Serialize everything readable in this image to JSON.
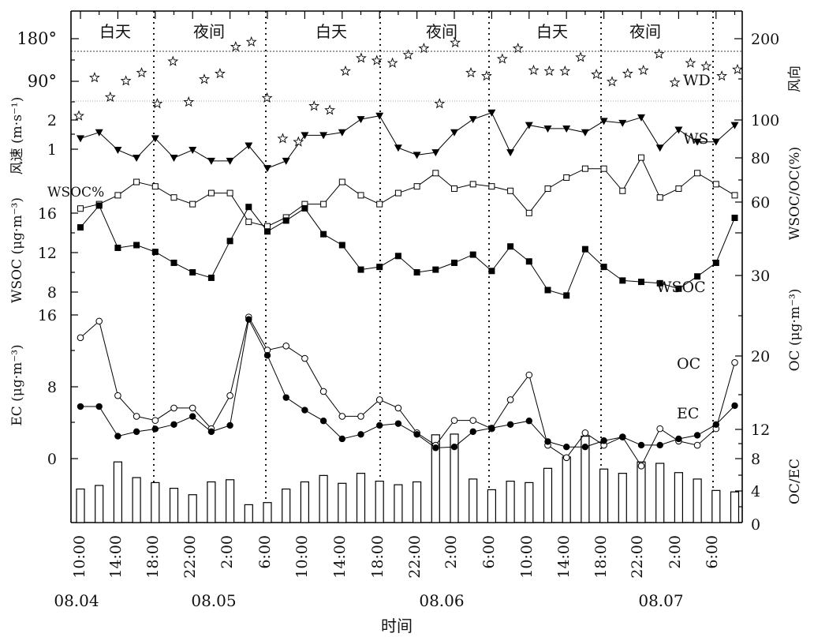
{
  "chart_data": {
    "type": "line",
    "xlabel": "时间",
    "x_tick_labels": [
      "10:00",
      "14:00",
      "18:00",
      "22:00",
      "2:00",
      "6:00",
      "10:00",
      "14:00",
      "18:00",
      "22:00",
      "2:00",
      "6:00",
      "10:00",
      "14:00",
      "18:00",
      "22:00",
      "2:00",
      "6:00"
    ],
    "date_labels": [
      "08.04",
      "08.05",
      "08.06",
      "08.07"
    ],
    "period_labels": [
      "白天",
      "夜间",
      "白天",
      "夜间",
      "白天",
      "夜间"
    ],
    "panels": {
      "wd": {
        "label": "WD",
        "left_tick_labels": [
          "180°",
          "90°"
        ],
        "right_ylabel": "风向",
        "right_tick_labels": [
          "200",
          "100"
        ],
        "ylim": [
          60,
          245
        ],
        "reference_lines": [
          180,
          90
        ],
        "values": [
          195,
          148,
          172,
          152,
          142,
          180,
          128,
          178,
          150,
          143,
          110,
          104,
          173,
          223,
          227,
          183,
          188,
          140,
          124,
          127,
          130,
          120,
          112,
          180,
          105,
          142,
          146,
          125,
          112,
          139,
          140,
          140,
          123,
          144,
          153,
          143,
          139,
          119,
          154,
          130,
          134,
          146,
          138
        ]
      },
      "ws": {
        "label": "WS",
        "ylabel": "风速 (m·s⁻¹)",
        "left_tick_labels": [
          "2",
          "1"
        ],
        "values": [
          1.0,
          1.2,
          0.7,
          0.55,
          1.0,
          0.55,
          0.7,
          0.5,
          0.5,
          0.8,
          0.4,
          0.5,
          1.1,
          1.1,
          1.2,
          1.8,
          2.0,
          0.75,
          0.6,
          0.65,
          1.2,
          1.8,
          2.2,
          0.65,
          1.5,
          1.35,
          1.35,
          1.2,
          1.7,
          1.6,
          1.9,
          0.75,
          1.3,
          0.9,
          0.9,
          1.5
        ]
      },
      "wsoc_pct": {
        "label": "WSOC%",
        "right_ylabel": "WSOC/OC(%)",
        "right_tick_labels": [
          "80",
          "60"
        ],
        "ylim": [
          34,
          86
        ],
        "values": [
          56,
          58,
          62,
          68,
          66,
          61,
          58,
          63,
          63,
          50,
          48,
          52,
          58,
          58,
          68,
          62,
          58,
          63,
          66,
          72,
          65,
          67,
          66,
          64,
          54,
          65,
          70,
          74,
          74,
          64,
          79,
          61,
          65,
          72,
          67,
          62
        ]
      },
      "wsoc": {
        "label": "WSOC",
        "ylabel": "WSOC (μg·m⁻³)",
        "left_tick_labels": [
          "16",
          "12",
          "8"
        ],
        "ylim": [
          7,
          16.5
        ],
        "values": [
          13.6,
          15.2,
          12.1,
          12.3,
          11.8,
          11.0,
          10.3,
          9.9,
          12.6,
          15.1,
          13.3,
          14.1,
          15.0,
          13.1,
          12.3,
          10.5,
          10.7,
          11.5,
          10.3,
          10.5,
          11.0,
          11.6,
          10.4,
          12.2,
          11.1,
          9.0,
          8.6,
          12.0,
          10.7,
          9.7,
          9.6,
          9.5,
          9.1,
          10.0,
          11.0,
          14.3
        ]
      },
      "oc": {
        "label": "OC",
        "right_ylabel": "OC (μg·m⁻³)",
        "right_tick_labels": [
          "30",
          "20"
        ],
        "ylim": [
          10,
          35
        ],
        "values": [
          27,
          29,
          20,
          17.5,
          17,
          18.5,
          18.5,
          16,
          20,
          29.5,
          25.5,
          26,
          24.5,
          20.5,
          17.5,
          17.5,
          19.5,
          18.5,
          15.5,
          14,
          17,
          17,
          16,
          19.5,
          22.5,
          14,
          12.5,
          15.5,
          14,
          15,
          11.5,
          16,
          14.5,
          14,
          16,
          24
        ]
      },
      "ec": {
        "label": "EC",
        "ylabel": "EC (μg·m⁻³)",
        "left_tick_labels": [
          "16",
          "8",
          "0"
        ],
        "ylim": [
          0,
          16
        ],
        "values": [
          5.8,
          5.8,
          2.5,
          3.0,
          3.3,
          3.8,
          4.7,
          3.0,
          3.7,
          15.5,
          11.5,
          6.8,
          5.4,
          4.2,
          2.2,
          2.7,
          3.7,
          3.9,
          2.7,
          1.2,
          1.3,
          3.0,
          3.4,
          3.8,
          4.2,
          1.9,
          1.3,
          1.3,
          2.0,
          2.4,
          1.5,
          1.5,
          2.2,
          2.6,
          3.8,
          5.9
        ]
      },
      "ratio": {
        "label": "OC/EC",
        "right_tick_labels": [
          "12",
          "8",
          "4",
          "0"
        ],
        "ylim": [
          0,
          13.5
        ],
        "values": [
          4.7,
          5.2,
          8.5,
          6.3,
          5.6,
          4.8,
          3.9,
          5.7,
          6.0,
          2.5,
          2.8,
          4.7,
          5.7,
          6.6,
          5.5,
          6.9,
          5.8,
          5.3,
          5.7,
          12.3,
          12.4,
          6.1,
          4.6,
          5.8,
          5.6,
          7.6,
          9.2,
          12.1,
          7.5,
          6.9,
          8.5,
          8.3,
          7.0,
          6.1,
          4.5,
          4.3
        ]
      }
    }
  }
}
